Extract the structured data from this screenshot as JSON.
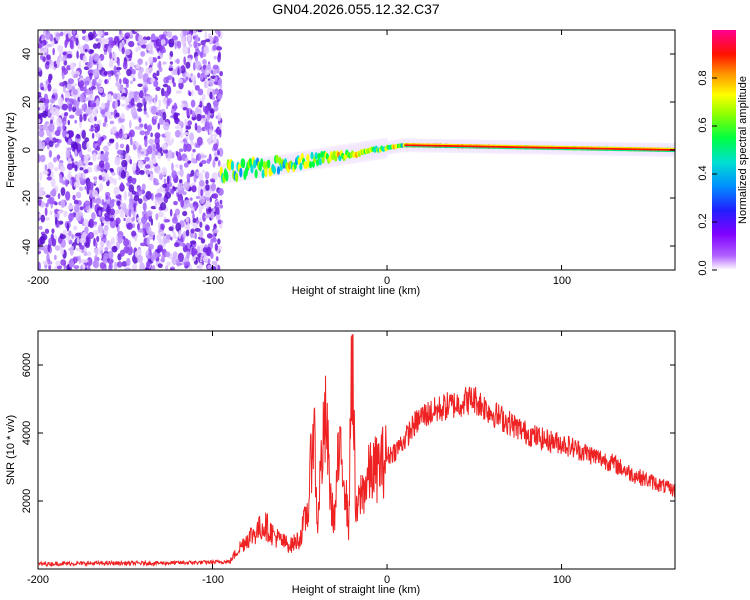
{
  "chart_data": [
    {
      "type": "heatmap",
      "title": "GN04.2026.055.12.32.C37",
      "xlabel": "Height of straight line (km)",
      "ylabel": "Frequency (Hz)",
      "xlim": [
        -200,
        165
      ],
      "ylim": [
        -50,
        50
      ],
      "xticks": [
        "-200",
        "-100",
        "0",
        "100"
      ],
      "yticks": [
        "-40",
        "-20",
        "0",
        "20",
        "40"
      ],
      "colorbar": {
        "label": "Normalized spectral amplitude",
        "range": [
          0,
          1
        ],
        "ticks": [
          "0.0",
          "0.2",
          "0.4",
          "0.6",
          "0.8"
        ],
        "colors": [
          "#ffffff",
          "#a000ff",
          "#3000ff",
          "#0080ff",
          "#00e0e0",
          "#00ff60",
          "#80ff00",
          "#ffff00",
          "#ff8000",
          "#ff0000",
          "#ff0090"
        ]
      },
      "features": {
        "noise_region_x": [
          -200,
          -95
        ],
        "onset_x": -95,
        "track_center_hz": 0,
        "track_start": [
          -95,
          -10
        ],
        "track_end": [
          165,
          0
        ]
      }
    },
    {
      "type": "line",
      "xlabel": "Height of straight line (km)",
      "ylabel": "SNR (10 * v/v)",
      "xlim": [
        -200,
        165
      ],
      "ylim": [
        0,
        7000
      ],
      "xticks": [
        "-200",
        "-100",
        "0",
        "100"
      ],
      "yticks": [
        "2000",
        "4000",
        "6000"
      ],
      "series": [
        {
          "name": "SNR",
          "color": "#ee2222",
          "x": [
            -200,
            -180,
            -160,
            -140,
            -120,
            -100,
            -90,
            -85,
            -80,
            -75,
            -70,
            -65,
            -60,
            -55,
            -50,
            -45,
            -42,
            -40,
            -38,
            -35,
            -32,
            -30,
            -28,
            -25,
            -22,
            -20,
            -18,
            -15,
            -12,
            -10,
            -5,
            0,
            5,
            10,
            15,
            20,
            25,
            30,
            35,
            40,
            45,
            50,
            55,
            60,
            70,
            80,
            90,
            100,
            110,
            120,
            130,
            140,
            150,
            160,
            165
          ],
          "values": [
            150,
            160,
            170,
            170,
            180,
            200,
            220,
            600,
            900,
            1100,
            1300,
            1000,
            800,
            700,
            900,
            1800,
            4600,
            1200,
            3000,
            4400,
            1800,
            1500,
            3200,
            3100,
            1200,
            6900,
            1500,
            2200,
            2500,
            2800,
            3000,
            3300,
            3500,
            3800,
            4200,
            4500,
            4600,
            4700,
            4800,
            4850,
            4950,
            5000,
            4800,
            4600,
            4300,
            4000,
            3800,
            3700,
            3500,
            3300,
            3100,
            2800,
            2600,
            2400,
            2300
          ]
        }
      ]
    }
  ]
}
